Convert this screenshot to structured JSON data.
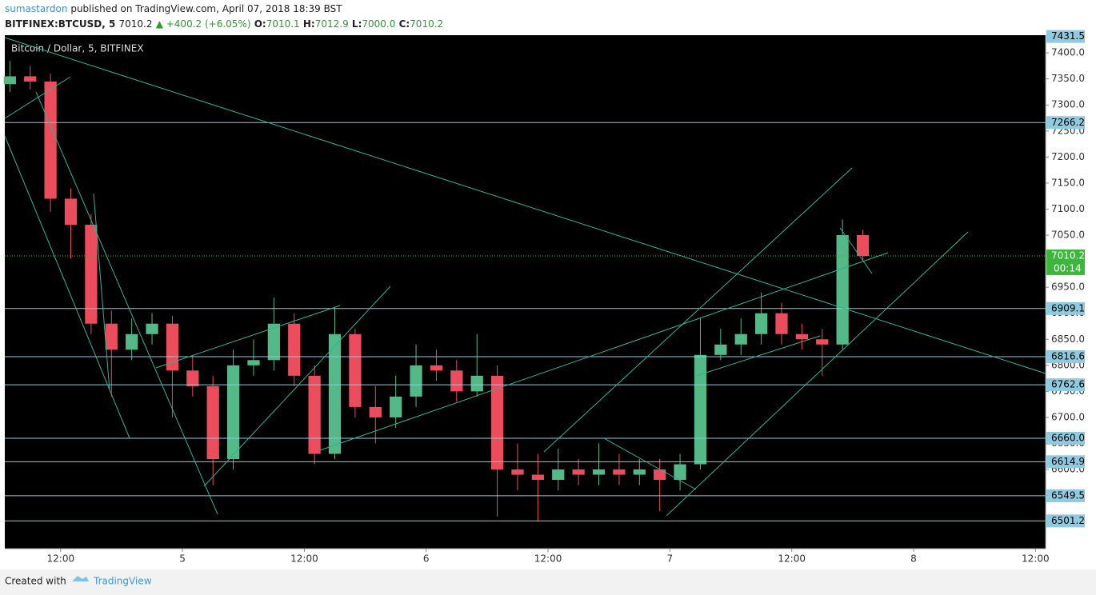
{
  "header": {
    "author": "sumastardon",
    "published": "published on TradingView.com, April 07, 2018 18:39 BST",
    "symbol": "BITFINEX:BTCUSD, 5",
    "last": "7010.2",
    "change": "▲ +400.2 (+6.05%)",
    "o_key": "O:",
    "o": "7010.1",
    "h_key": "H:",
    "h": "7012.9",
    "l_key": "L:",
    "l": "7000.0",
    "c_key": "C:",
    "c": "7010.2"
  },
  "footer": {
    "created_with": "Created with",
    "brand": "TradingView"
  },
  "chart_data": {
    "type": "candlestick",
    "title": "Bitcoin / Dollar, 5, BITFINEX",
    "up_color": "#53b987",
    "down_color": "#eb4d5c",
    "grid": false,
    "x": [
      31,
      33,
      35,
      37,
      39,
      41,
      43,
      45,
      47,
      49,
      51,
      53,
      55,
      57,
      59,
      61,
      63,
      65,
      67,
      69,
      71,
      73,
      75,
      77,
      79,
      81,
      83,
      85,
      87,
      89,
      91,
      93,
      95,
      97,
      99,
      101,
      103,
      105,
      107,
      109,
      111,
      113,
      115
    ],
    "open": [
      7340,
      7355,
      7345,
      7120,
      7070,
      6880,
      6830,
      6860,
      6880,
      6790,
      6760,
      6620,
      6800,
      6810,
      6880,
      6780,
      6630,
      6860,
      6720,
      6700,
      6740,
      6800,
      6790,
      6750,
      6780,
      6600,
      6590,
      6580,
      6600,
      6590,
      6600,
      6590,
      6600,
      6580,
      6610,
      6820,
      6840,
      6860,
      6900,
      6860,
      6850,
      6840,
      7050
    ],
    "high": [
      7385,
      7375,
      7360,
      7140,
      7090,
      6905,
      6890,
      6900,
      6895,
      6820,
      6780,
      6830,
      6850,
      6930,
      6900,
      6800,
      6910,
      6870,
      6760,
      6780,
      6840,
      6830,
      6810,
      6860,
      6800,
      6650,
      6630,
      6640,
      6620,
      6650,
      6630,
      6620,
      6620,
      6630,
      6890,
      6870,
      6890,
      6940,
      6920,
      6880,
      6870,
      7080,
      7060
    ],
    "low": [
      7325,
      7330,
      7095,
      7005,
      6860,
      6740,
      6810,
      6840,
      6700,
      6740,
      6570,
      6600,
      6780,
      6790,
      6760,
      6610,
      6620,
      6700,
      6650,
      6680,
      6720,
      6770,
      6730,
      6740,
      6510,
      6560,
      6500,
      6560,
      6570,
      6570,
      6570,
      6570,
      6520,
      6560,
      6600,
      6810,
      6820,
      6840,
      6840,
      6830,
      6780,
      6830,
      7000
    ],
    "close": [
      7355,
      7345,
      7120,
      7070,
      6880,
      6830,
      6860,
      6880,
      6790,
      6760,
      6620,
      6800,
      6810,
      6880,
      6780,
      6630,
      6860,
      6720,
      6700,
      6740,
      6800,
      6790,
      6750,
      6780,
      6600,
      6590,
      6580,
      6600,
      6590,
      6600,
      6590,
      6600,
      6580,
      6610,
      6820,
      6840,
      6860,
      6900,
      6860,
      6850,
      6840,
      7050,
      7010
    ],
    "xlim": [
      30.5,
      133
    ],
    "ylim": [
      6448,
      7434
    ],
    "xticks": [
      {
        "value": 36,
        "label": "12:00"
      },
      {
        "value": 48,
        "label": "5"
      },
      {
        "value": 60,
        "label": "12:00"
      },
      {
        "value": 72,
        "label": "6"
      },
      {
        "value": 84,
        "label": "12:00"
      },
      {
        "value": 96,
        "label": "7"
      },
      {
        "value": 108,
        "label": "12:00"
      },
      {
        "value": 120,
        "label": "8"
      },
      {
        "value": 132,
        "label": "12:00"
      }
    ],
    "yticks": [
      {
        "value": 6500,
        "label": "6500.0"
      },
      {
        "value": 6550,
        "label": "6550.0"
      },
      {
        "value": 6600,
        "label": "6600.0"
      },
      {
        "value": 6650,
        "label": "6650.0"
      },
      {
        "value": 6700,
        "label": "6700.0"
      },
      {
        "value": 6750,
        "label": "6750.0"
      },
      {
        "value": 6800,
        "label": "6800.0"
      },
      {
        "value": 6850,
        "label": "6850.0"
      },
      {
        "value": 6900,
        "label": "6900.0"
      },
      {
        "value": 6950,
        "label": "6950.0"
      },
      {
        "value": 7000,
        "label": "7000.0"
      },
      {
        "value": 7050,
        "label": "7050.0"
      },
      {
        "value": 7100,
        "label": "7100.0"
      },
      {
        "value": 7150,
        "label": "7150.0"
      },
      {
        "value": 7200,
        "label": "7200.0"
      },
      {
        "value": 7250,
        "label": "7250.0"
      },
      {
        "value": 7300,
        "label": "7300.0"
      },
      {
        "value": 7350,
        "label": "7350.0"
      },
      {
        "value": 7400,
        "label": "7400.0"
      }
    ],
    "levels": [
      7266.2,
      6909.1,
      6816.6,
      6762.6,
      {
        "value": 6660,
        "label": "6660.0"
      },
      6614.9,
      6549.5,
      6501.2
    ],
    "level_color": "#8ecae0",
    "top_label": 7431.5,
    "last_price": 7010.2,
    "last_color": "#3cb73c",
    "countdown": "00:14"
  }
}
